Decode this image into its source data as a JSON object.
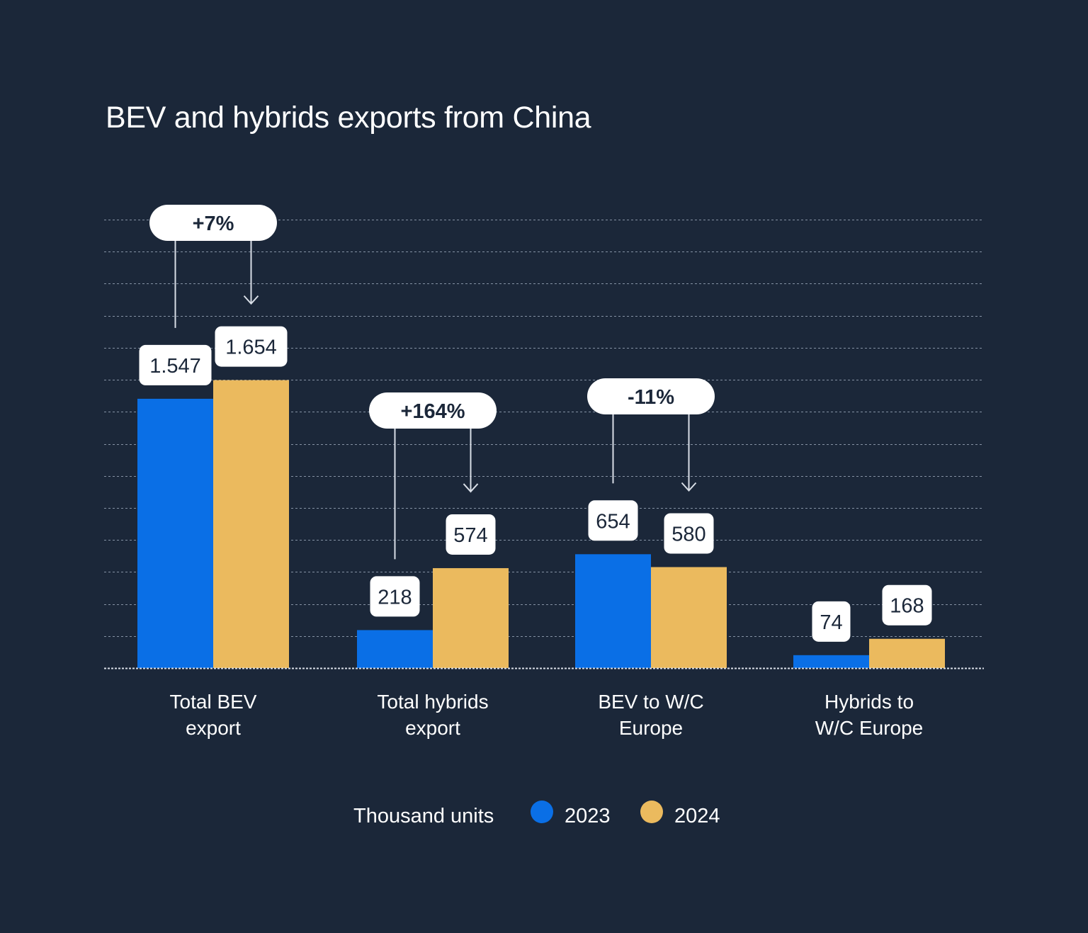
{
  "chart_data": {
    "type": "bar",
    "title": "BEV and hybrids exports from China",
    "unit_label": "Thousand units",
    "categories": [
      [
        "Total BEV",
        "export"
      ],
      [
        "Total hybrids",
        "export"
      ],
      [
        "BEV to W/C",
        "Europe"
      ],
      [
        "Hybrids to",
        "W/C Europe"
      ]
    ],
    "series": [
      {
        "name": "2023",
        "color": "#0a6fe6",
        "values": [
          1547,
          218,
          654,
          74
        ],
        "labels": [
          "1.547",
          "218",
          "654",
          "74"
        ]
      },
      {
        "name": "2024",
        "color": "#ebba5e",
        "values": [
          1654,
          574,
          580,
          168
        ],
        "labels": [
          "1.654",
          "574",
          "580",
          "168"
        ]
      }
    ],
    "changes": [
      "+7%",
      "+164%",
      "-11%",
      null
    ],
    "ylim": [
      0,
      1900
    ],
    "gridlines": 14,
    "grid": true,
    "legend_position": "bottom"
  }
}
